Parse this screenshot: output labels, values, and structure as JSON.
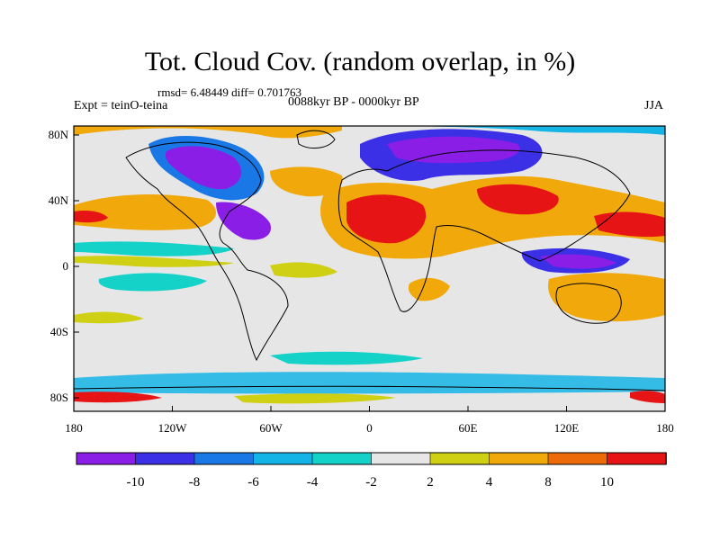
{
  "title": "Tot. Cloud Cov. (random overlap, in %)",
  "stats": "rmsd= 6.48449 diff= 0.701763",
  "experiment": "Expt = teinO-teina",
  "period": "0088kyr BP - 0000kyr BP",
  "season": "JJA",
  "chart_data": {
    "type": "heatmap",
    "x_ticks": [
      "180",
      "120W",
      "60W",
      "0",
      "60E",
      "120E",
      "180"
    ],
    "y_ticks": [
      "80N",
      "40N",
      "0",
      "40S",
      "80S"
    ],
    "colorbar": {
      "labels": [
        "-10",
        "-8",
        "-6",
        "-4",
        "-2",
        "2",
        "4",
        "8",
        "10"
      ],
      "colors": [
        "#8a1ee6",
        "#3c30e6",
        "#1a78e6",
        "#14b4e6",
        "#14d2c8",
        "#e6e6e6",
        "#cfcf14",
        "#f0a80a",
        "#ec6a08",
        "#e61414"
      ]
    }
  }
}
